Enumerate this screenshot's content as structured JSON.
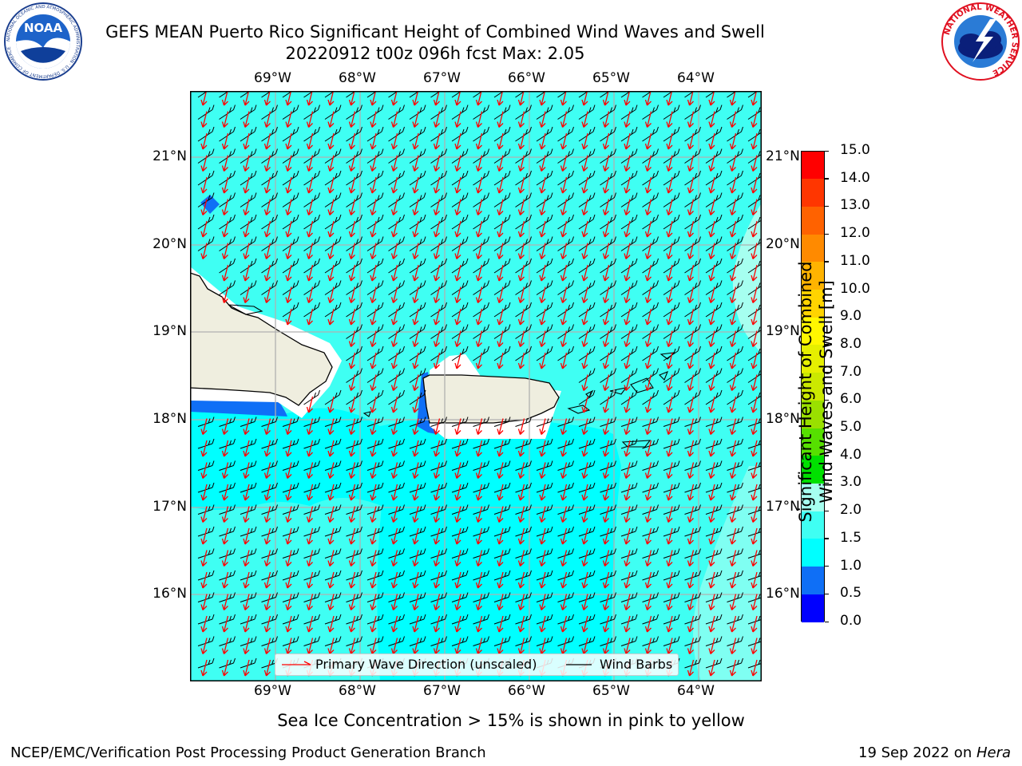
{
  "header": {
    "title_line1": "GEFS MEAN Puerto Rico Significant Height of Combined Wind Waves and Swell",
    "title_line2": "20220912 t00z 096h fcst   Max: 2.05"
  },
  "logos": {
    "left": "NOAA",
    "left_ring": "NATIONAL OCEANIC AND ATMOSPHERIC ADMINISTRATION · U.S. DEPARTMENT OF COMMERCE",
    "right_ring": "NATIONAL WEATHER SERVICE"
  },
  "map": {
    "lon_labels": [
      "69°W",
      "68°W",
      "67°W",
      "66°W",
      "65°W",
      "64°W"
    ],
    "lat_labels": [
      "21°N",
      "20°N",
      "19°N",
      "18°N",
      "17°N",
      "16°N"
    ],
    "legend": {
      "wave_label": "Primary Wave Direction (unscaled)",
      "barb_label": "Wind Barbs"
    },
    "colors": {
      "land": "#efeedf",
      "sea_1_1_5": "#00ffff",
      "sea_1_5_2": "#3ffff3",
      "sea_2_3": "#a6fff0",
      "arrow": "#ff0000",
      "barb": "#000000"
    }
  },
  "colorbar": {
    "label_line1": "Significant Height of Combined",
    "label_line2": "Wind Waves and Swell [m]",
    "ticks": [
      "15.0",
      "14.0",
      "13.0",
      "12.0",
      "11.0",
      "10.0",
      "9.0",
      "8.0",
      "7.0",
      "6.0",
      "5.0",
      "4.0",
      "3.0",
      "2.0",
      "1.5",
      "1.0",
      "0.5",
      "0.0"
    ],
    "colors": [
      "#0000ff",
      "#0f6ff6",
      "#00ffff",
      "#3ffff3",
      "#a6fff0",
      "#4ef57c",
      "#00e000",
      "#56e000",
      "#9ae000",
      "#cbe900",
      "#e6ef00",
      "#fff700",
      "#ffd400",
      "#ffb300",
      "#ff8a00",
      "#ff6200",
      "#ff3600",
      "#ff0000"
    ]
  },
  "footer": {
    "sea_ice_note": "Sea Ice Concentration > 15% is shown in pink to yellow",
    "left": "NCEP/EMC/Verification Post Processing Product Generation Branch",
    "right_date": "19 Sep 2022 on ",
    "right_machine": "Hera"
  }
}
